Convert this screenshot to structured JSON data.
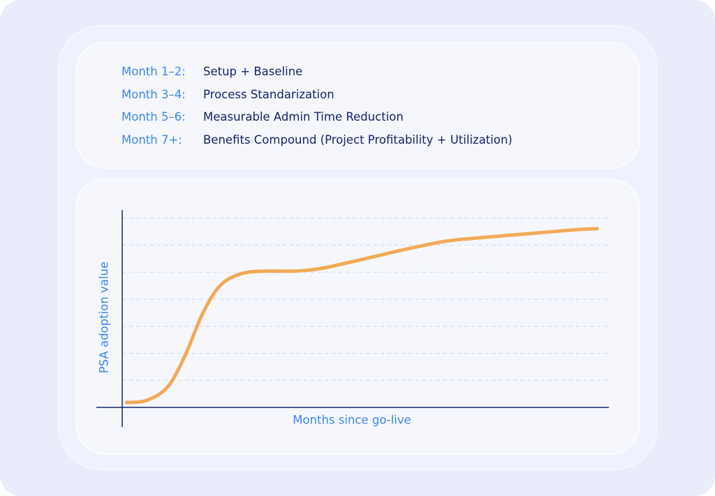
{
  "timeline": [
    {
      "label": "Month 1–2:",
      "text": "Setup + Baseline"
    },
    {
      "label": "Month 3–4:",
      "text": "Process Standarization"
    },
    {
      "label": "Month 5–6:",
      "text": "Measurable Admin Time Reduction"
    },
    {
      "label": "Month 7+:",
      "text": "Benefits Compound (Project Profitability + Utilization)"
    }
  ],
  "chart_data": {
    "type": "line",
    "xlabel": "Months since go-live",
    "ylabel": "PSA adoption value",
    "x": [
      0.09,
      0.5,
      0.93,
      1.29,
      1.65,
      2.01,
      2.44,
      2.94,
      3.52,
      4.09,
      4.95,
      5.81,
      6.67,
      7.53,
      8.39,
      9.25,
      9.76
    ],
    "series": [
      {
        "color": "#f2aa58",
        "values": [
          0.18,
          0.26,
          0.75,
          1.91,
          3.46,
          4.5,
          4.94,
          5.04,
          5.04,
          5.14,
          5.48,
          5.84,
          6.15,
          6.3,
          6.43,
          6.56,
          6.61
        ]
      }
    ],
    "xlim": [
      0,
      10
    ],
    "ylim": [
      0,
      7.3
    ],
    "yticks": [
      1,
      2,
      3,
      4,
      5,
      6,
      7
    ],
    "grid": true
  }
}
